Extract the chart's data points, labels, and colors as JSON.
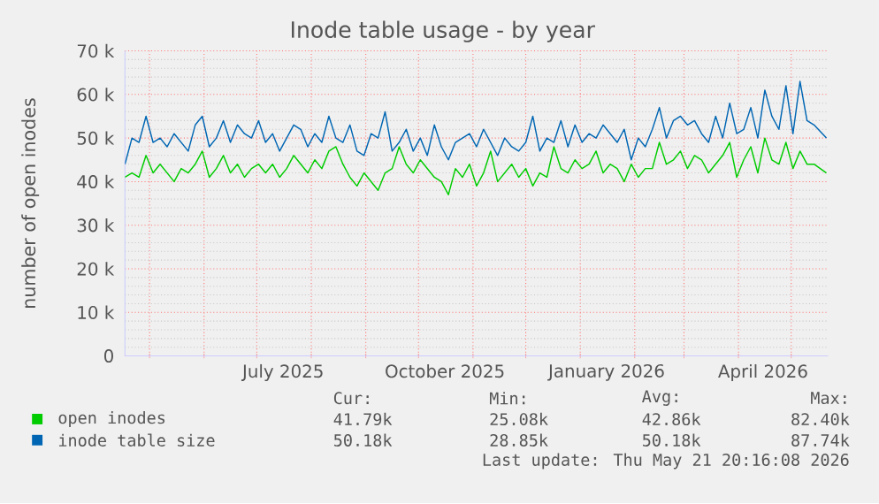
{
  "chart_data": {
    "type": "line",
    "title": "Inode table usage - by year",
    "ylabel": "number of open inodes",
    "x": [
      "2025-04-17",
      "2025-04-21",
      "2025-04-25",
      "2025-04-29",
      "2025-05-03",
      "2025-05-07",
      "2025-05-11",
      "2025-05-15",
      "2025-05-19",
      "2025-05-23",
      "2025-05-27",
      "2025-05-31",
      "2025-06-04",
      "2025-06-08",
      "2025-06-12",
      "2025-06-16",
      "2025-06-20",
      "2025-06-24",
      "2025-06-28",
      "2025-07-02",
      "2025-07-06",
      "2025-07-10",
      "2025-07-14",
      "2025-07-18",
      "2025-07-22",
      "2025-07-26",
      "2025-07-30",
      "2025-08-03",
      "2025-08-07",
      "2025-08-11",
      "2025-08-15",
      "2025-08-19",
      "2025-08-23",
      "2025-08-27",
      "2025-08-31",
      "2025-09-04",
      "2025-09-08",
      "2025-09-12",
      "2025-09-16",
      "2025-09-20",
      "2025-09-24",
      "2025-09-28",
      "2025-10-02",
      "2025-10-06",
      "2025-10-10",
      "2025-10-14",
      "2025-10-18",
      "2025-10-22",
      "2025-10-26",
      "2025-10-30",
      "2025-11-03",
      "2025-11-07",
      "2025-11-11",
      "2025-11-15",
      "2025-11-19",
      "2025-11-23",
      "2025-11-27",
      "2025-12-01",
      "2025-12-05",
      "2025-12-09",
      "2025-12-13",
      "2025-12-17",
      "2025-12-21",
      "2025-12-25",
      "2025-12-29",
      "2026-01-02",
      "2026-01-06",
      "2026-01-10",
      "2026-01-14",
      "2026-01-18",
      "2026-01-22",
      "2026-01-26",
      "2026-01-30",
      "2026-02-03",
      "2026-02-07",
      "2026-02-11",
      "2026-02-15",
      "2026-02-19",
      "2026-02-23",
      "2026-02-27",
      "2026-03-03",
      "2026-03-07",
      "2026-03-11",
      "2026-03-15",
      "2026-03-19",
      "2026-03-23",
      "2026-03-27",
      "2026-03-31",
      "2026-04-04",
      "2026-04-08",
      "2026-04-12",
      "2026-04-16",
      "2026-04-20",
      "2026-04-24",
      "2026-04-28",
      "2026-05-02",
      "2026-05-06",
      "2026-05-10",
      "2026-05-14",
      "2026-05-21"
    ],
    "series": [
      {
        "name": "open inodes",
        "color": "#00cc00",
        "values": [
          41000,
          42000,
          41000,
          46000,
          42000,
          44000,
          42000,
          40000,
          43000,
          42000,
          44000,
          47000,
          41000,
          43000,
          46000,
          42000,
          44000,
          41000,
          43000,
          44000,
          42000,
          44000,
          41000,
          43000,
          46000,
          44000,
          42000,
          45000,
          43000,
          47000,
          48000,
          44000,
          41000,
          39000,
          42000,
          40000,
          38000,
          42000,
          43000,
          48000,
          44000,
          42000,
          45000,
          43000,
          41000,
          40000,
          37000,
          43000,
          41000,
          44000,
          39000,
          42000,
          47000,
          40000,
          42000,
          44000,
          41000,
          43000,
          39000,
          42000,
          41000,
          48000,
          43000,
          42000,
          45000,
          43000,
          44000,
          47000,
          42000,
          44000,
          43000,
          40000,
          44000,
          41000,
          43000,
          43000,
          49000,
          44000,
          45000,
          47000,
          43000,
          46000,
          45000,
          42000,
          44000,
          46000,
          49000,
          41000,
          45000,
          48000,
          42000,
          50000,
          45000,
          44000,
          49000,
          43000,
          47000,
          44000,
          44000,
          42000
        ]
      },
      {
        "name": "inode table size",
        "color": "#0066b3",
        "values": [
          44000,
          50000,
          49000,
          55000,
          49000,
          50000,
          48000,
          51000,
          49000,
          47000,
          53000,
          55000,
          48000,
          50000,
          54000,
          49000,
          53000,
          51000,
          50000,
          54000,
          49000,
          51000,
          47000,
          50000,
          53000,
          52000,
          48000,
          51000,
          49000,
          55000,
          50000,
          49000,
          53000,
          47000,
          46000,
          51000,
          50000,
          56000,
          47000,
          49000,
          52000,
          47000,
          50000,
          46000,
          53000,
          48000,
          45000,
          49000,
          50000,
          51000,
          48000,
          52000,
          49000,
          46000,
          50000,
          48000,
          47000,
          49000,
          55000,
          47000,
          50000,
          49000,
          54000,
          48000,
          53000,
          49000,
          51000,
          50000,
          53000,
          51000,
          49000,
          52000,
          45000,
          50000,
          48000,
          52000,
          57000,
          50000,
          54000,
          55000,
          53000,
          54000,
          51000,
          49000,
          55000,
          50000,
          58000,
          51000,
          52000,
          57000,
          50000,
          61000,
          55000,
          52000,
          62000,
          51000,
          63000,
          54000,
          53000,
          50000
        ]
      }
    ],
    "xlim": [
      "2025-04-17",
      "2026-05-22"
    ],
    "xticks": [
      {
        "value": "2025-05-01",
        "label": null
      },
      {
        "value": "2025-06-01",
        "label": null
      },
      {
        "value": "2025-07-01",
        "label": null
      },
      {
        "value": "2025-07-16",
        "label": "July 2025"
      },
      {
        "value": "2025-08-01",
        "label": null
      },
      {
        "value": "2025-09-01",
        "label": null
      },
      {
        "value": "2025-10-01",
        "label": null
      },
      {
        "value": "2025-10-16",
        "label": "October 2025"
      },
      {
        "value": "2025-11-01",
        "label": null
      },
      {
        "value": "2025-12-01",
        "label": null
      },
      {
        "value": "2026-01-01",
        "label": null
      },
      {
        "value": "2026-01-16",
        "label": "January 2026"
      },
      {
        "value": "2026-02-01",
        "label": null
      },
      {
        "value": "2026-03-01",
        "label": null
      },
      {
        "value": "2026-04-01",
        "label": null
      },
      {
        "value": "2026-04-15",
        "label": "April 2026"
      },
      {
        "value": "2026-05-01",
        "label": null
      }
    ],
    "ylim": [
      0,
      70000
    ],
    "yticks": [
      0,
      {
        "value": 10000,
        "label": "10 k"
      },
      {
        "value": 20000,
        "label": "20 k"
      },
      {
        "value": 30000,
        "label": "30 k"
      },
      {
        "value": 40000,
        "label": "40 k"
      },
      {
        "value": 50000,
        "label": "50 k"
      },
      {
        "value": 60000,
        "label": "60 k"
      },
      {
        "value": 70000,
        "label": "70 k"
      }
    ],
    "grid": true,
    "legend": "bottom",
    "annotations": [
      "Cur:",
      "Min:",
      "Avg:",
      "Max:",
      "41.79k",
      "25.08k",
      "42.86k",
      "82.40k",
      "50.18k",
      "28.85k",
      "50.18k",
      "87.74k",
      "Last update: Thu May 21 20:16:08 2026"
    ]
  }
}
